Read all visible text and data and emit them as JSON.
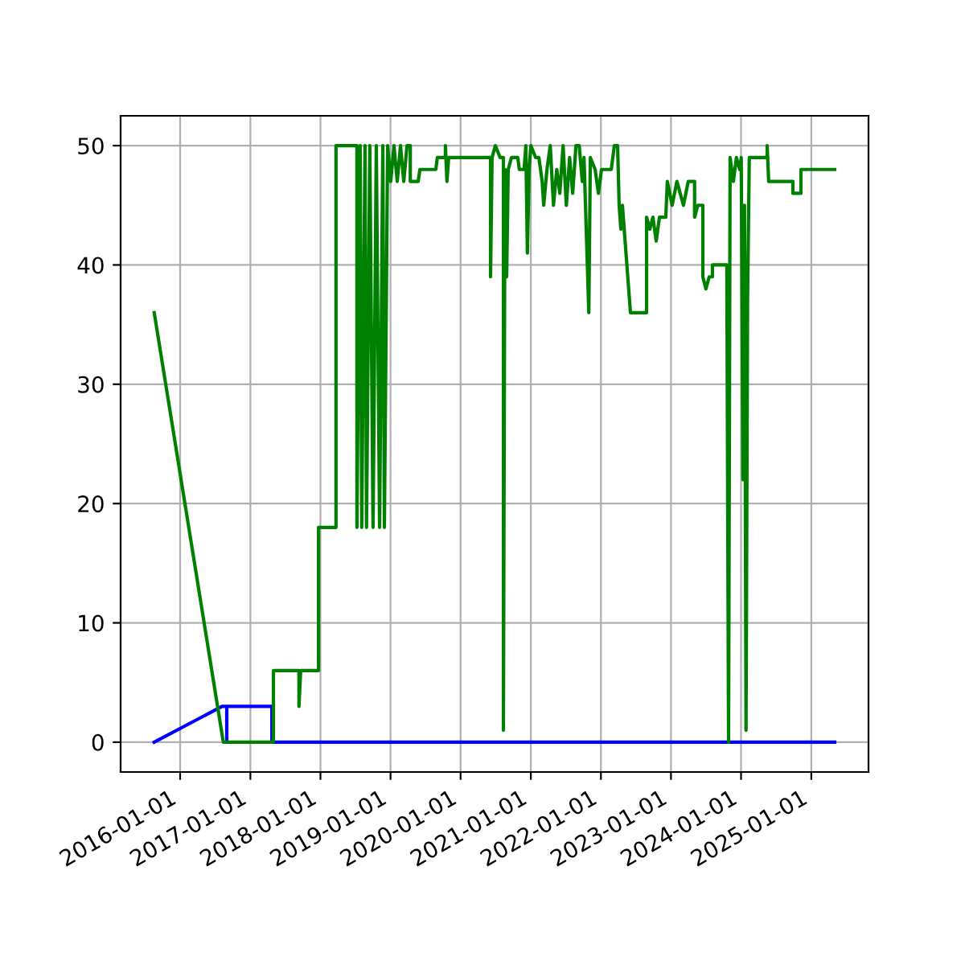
{
  "chart_data": {
    "type": "line",
    "series": [
      {
        "color": "#0000ff",
        "x": [
          "2015-08-19",
          "2016-08-06",
          "2016-08-31",
          "2016-08-31",
          "2016-08-31",
          "2017-04-23",
          "2017-04-23",
          "2025-05-03"
        ],
        "values": [
          0,
          3,
          3,
          0,
          3,
          3,
          0,
          0
        ]
      },
      {
        "color": "#008000",
        "x": [
          "2015-08-19",
          "2016-08-13",
          "2017-05-01",
          "2017-05-01",
          "2017-09-11",
          "2017-09-11",
          "2017-09-20",
          "2017-12-22",
          "2017-12-22",
          "2018-03-23",
          "2018-03-23",
          "2018-07-10",
          "2018-07-10",
          "2018-07-27",
          "2018-08-04",
          "2018-08-21",
          "2018-08-29",
          "2018-09-15",
          "2018-10-02",
          "2018-10-19",
          "2018-11-05",
          "2018-11-22",
          "2018-11-30",
          "2018-12-17",
          "2019-01-02",
          "2019-01-19",
          "2019-02-05",
          "2019-02-22",
          "2019-03-11",
          "2019-03-28",
          "2019-04-14",
          "2019-04-14",
          "2019-05-25",
          "2019-06-03",
          "2019-08-25",
          "2019-09-02",
          "2019-10-14",
          "2019-10-14",
          "2019-10-22",
          "2019-10-31",
          "2020-06-05",
          "2020-06-05",
          "2020-06-13",
          "2020-06-30",
          "2020-07-25",
          "2020-08-11",
          "2020-08-11",
          "2020-08-19",
          "2020-08-28",
          "2020-09-05",
          "2020-09-22",
          "2020-10-25",
          "2020-11-02",
          "2020-11-27",
          "2020-12-06",
          "2020-12-14",
          "2020-12-23",
          "2021-01-01",
          "2021-01-26",
          "2021-02-12",
          "2021-03-01",
          "2021-03-09",
          "2021-03-26",
          "2021-04-12",
          "2021-04-29",
          "2021-05-16",
          "2021-06-01",
          "2021-06-18",
          "2021-07-05",
          "2021-07-22",
          "2021-08-07",
          "2021-08-24",
          "2021-09-10",
          "2021-09-26",
          "2021-10-05",
          "2021-10-30",
          "2021-11-07",
          "2021-12-02",
          "2021-12-19",
          "2022-01-04",
          "2022-02-24",
          "2022-03-12",
          "2022-03-29",
          "2022-04-06",
          "2022-04-15",
          "2022-04-23",
          "2022-06-04",
          "2022-08-27",
          "2022-08-27",
          "2022-09-13",
          "2022-09-29",
          "2022-10-16",
          "2022-11-02",
          "2022-12-05",
          "2022-12-13",
          "2023-01-07",
          "2023-02-01",
          "2023-03-07",
          "2023-04-01",
          "2023-05-04",
          "2023-05-04",
          "2023-05-21",
          "2023-06-16",
          "2023-06-16",
          "2023-07-02",
          "2023-07-19",
          "2023-08-05",
          "2023-08-05",
          "2023-10-19",
          "2023-10-28",
          "2023-11-05",
          "2023-11-22",
          "2023-12-08",
          "2023-12-25",
          "2024-01-02",
          "2024-01-11",
          "2024-01-19",
          "2024-01-27",
          "2024-02-04",
          "2024-02-13",
          "2024-05-16",
          "2024-05-16",
          "2024-05-24",
          "2024-09-27",
          "2024-09-27",
          "2024-11-08",
          "2024-11-08",
          "2025-05-03"
        ],
        "values": [
          36,
          0,
          0,
          6,
          6,
          3,
          6,
          6,
          18,
          18,
          50,
          50,
          18,
          50,
          18,
          50,
          18,
          50,
          18,
          50,
          18,
          50,
          18,
          50,
          47,
          50,
          47,
          50,
          47,
          50,
          50,
          47,
          47,
          48,
          48,
          49,
          49,
          50,
          47,
          49,
          49,
          39,
          49,
          50,
          49,
          49,
          1,
          48,
          39,
          48,
          49,
          49,
          48,
          48,
          50,
          41,
          48,
          50,
          49,
          49,
          47,
          45,
          48,
          50,
          45,
          48,
          46,
          50,
          45,
          49,
          46,
          50,
          50,
          47,
          49,
          36,
          49,
          48,
          46,
          48,
          48,
          50,
          50,
          45,
          43,
          45,
          36,
          36,
          44,
          43,
          44,
          42,
          44,
          44,
          47,
          45,
          47,
          45,
          47,
          47,
          44,
          45,
          45,
          39,
          38,
          39,
          39,
          40,
          40,
          0,
          49,
          47,
          49,
          48,
          49,
          22,
          45,
          1,
          37,
          49,
          49,
          50,
          47,
          47,
          46,
          46,
          48,
          48
        ]
      }
    ],
    "xlim": [
      "2015-02-25",
      "2025-10-26"
    ],
    "ylim": [
      -2.5,
      52.5
    ],
    "xticks": [
      "2016-01-01",
      "2017-01-01",
      "2018-01-01",
      "2019-01-01",
      "2020-01-01",
      "2021-01-01",
      "2022-01-01",
      "2023-01-01",
      "2024-01-01",
      "2025-01-01"
    ],
    "yticks": [
      0,
      10,
      20,
      30,
      40,
      50
    ],
    "grid": true
  }
}
